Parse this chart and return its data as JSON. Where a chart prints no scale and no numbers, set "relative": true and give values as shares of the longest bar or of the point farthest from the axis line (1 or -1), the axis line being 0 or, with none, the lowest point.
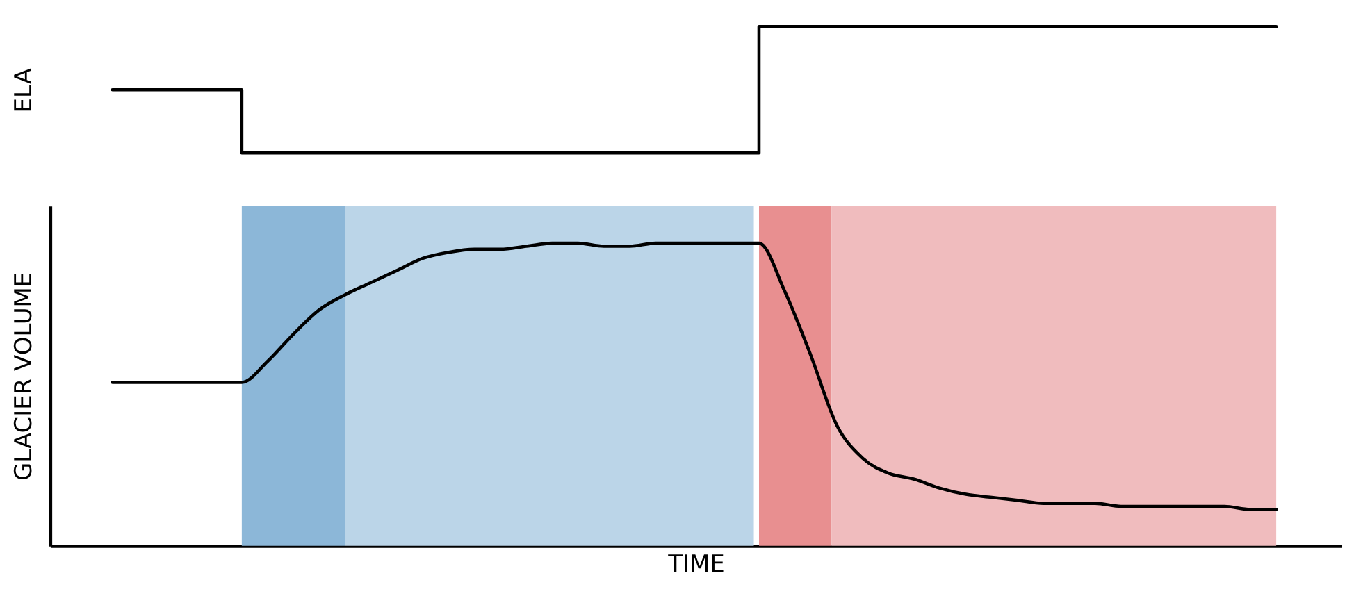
{
  "chart_data": [
    {
      "type": "step",
      "ylabel": "ELA",
      "relative": true,
      "categories": [
        null,
        null,
        null,
        null,
        null,
        null,
        null,
        null,
        null,
        null,
        null,
        null,
        null,
        null,
        null,
        null,
        null,
        null,
        null,
        null,
        null,
        null,
        null,
        null,
        null,
        null,
        null,
        null,
        null,
        null,
        null,
        null,
        null,
        null,
        null,
        null,
        null,
        null,
        null,
        null,
        null,
        null,
        null,
        null,
        null,
        null
      ],
      "series": [
        {
          "color": "#000000",
          "values": [
            0.5,
            0.5,
            0.5,
            0.5,
            0.5,
            0,
            0,
            0,
            0,
            0,
            0,
            0,
            0,
            0,
            0,
            0,
            0,
            0,
            0,
            0,
            0,
            0,
            0,
            0,
            0,
            1,
            1,
            1,
            1,
            1,
            1,
            1,
            1,
            1,
            1,
            1,
            1,
            1,
            1,
            1,
            1,
            1,
            1,
            1,
            1,
            1
          ]
        }
      ]
    },
    {
      "type": "line",
      "xlabel": "TIME",
      "ylabel": "GLACIER VOLUME",
      "relative": true,
      "categories": [
        null,
        null,
        null,
        null,
        null,
        null,
        null,
        null,
        null,
        null,
        null,
        null,
        null,
        null,
        null,
        null,
        null,
        null,
        null,
        null,
        null,
        null,
        null,
        null,
        null,
        null,
        null,
        null,
        null,
        null,
        null,
        null,
        null,
        null,
        null,
        null,
        null,
        null,
        null,
        null,
        null,
        null,
        null,
        null,
        null,
        null
      ],
      "series": [
        {
          "color": "#000000",
          "values": [
            0.54,
            0.54,
            0.54,
            0.54,
            0.54,
            0.54,
            0.61,
            0.7,
            0.78,
            0.83,
            0.87,
            0.91,
            0.95,
            0.97,
            0.98,
            0.98,
            0.99,
            1,
            1,
            0.99,
            0.99,
            1,
            1,
            1,
            1,
            1,
            0.84,
            0.63,
            0.4,
            0.29,
            0.24,
            0.22,
            0.19,
            0.17,
            0.16,
            0.15,
            0.14,
            0.14,
            0.14,
            0.13,
            0.13,
            0.13,
            0.13,
            0.13,
            0.12,
            0.12
          ]
        }
      ]
    }
  ]
}
